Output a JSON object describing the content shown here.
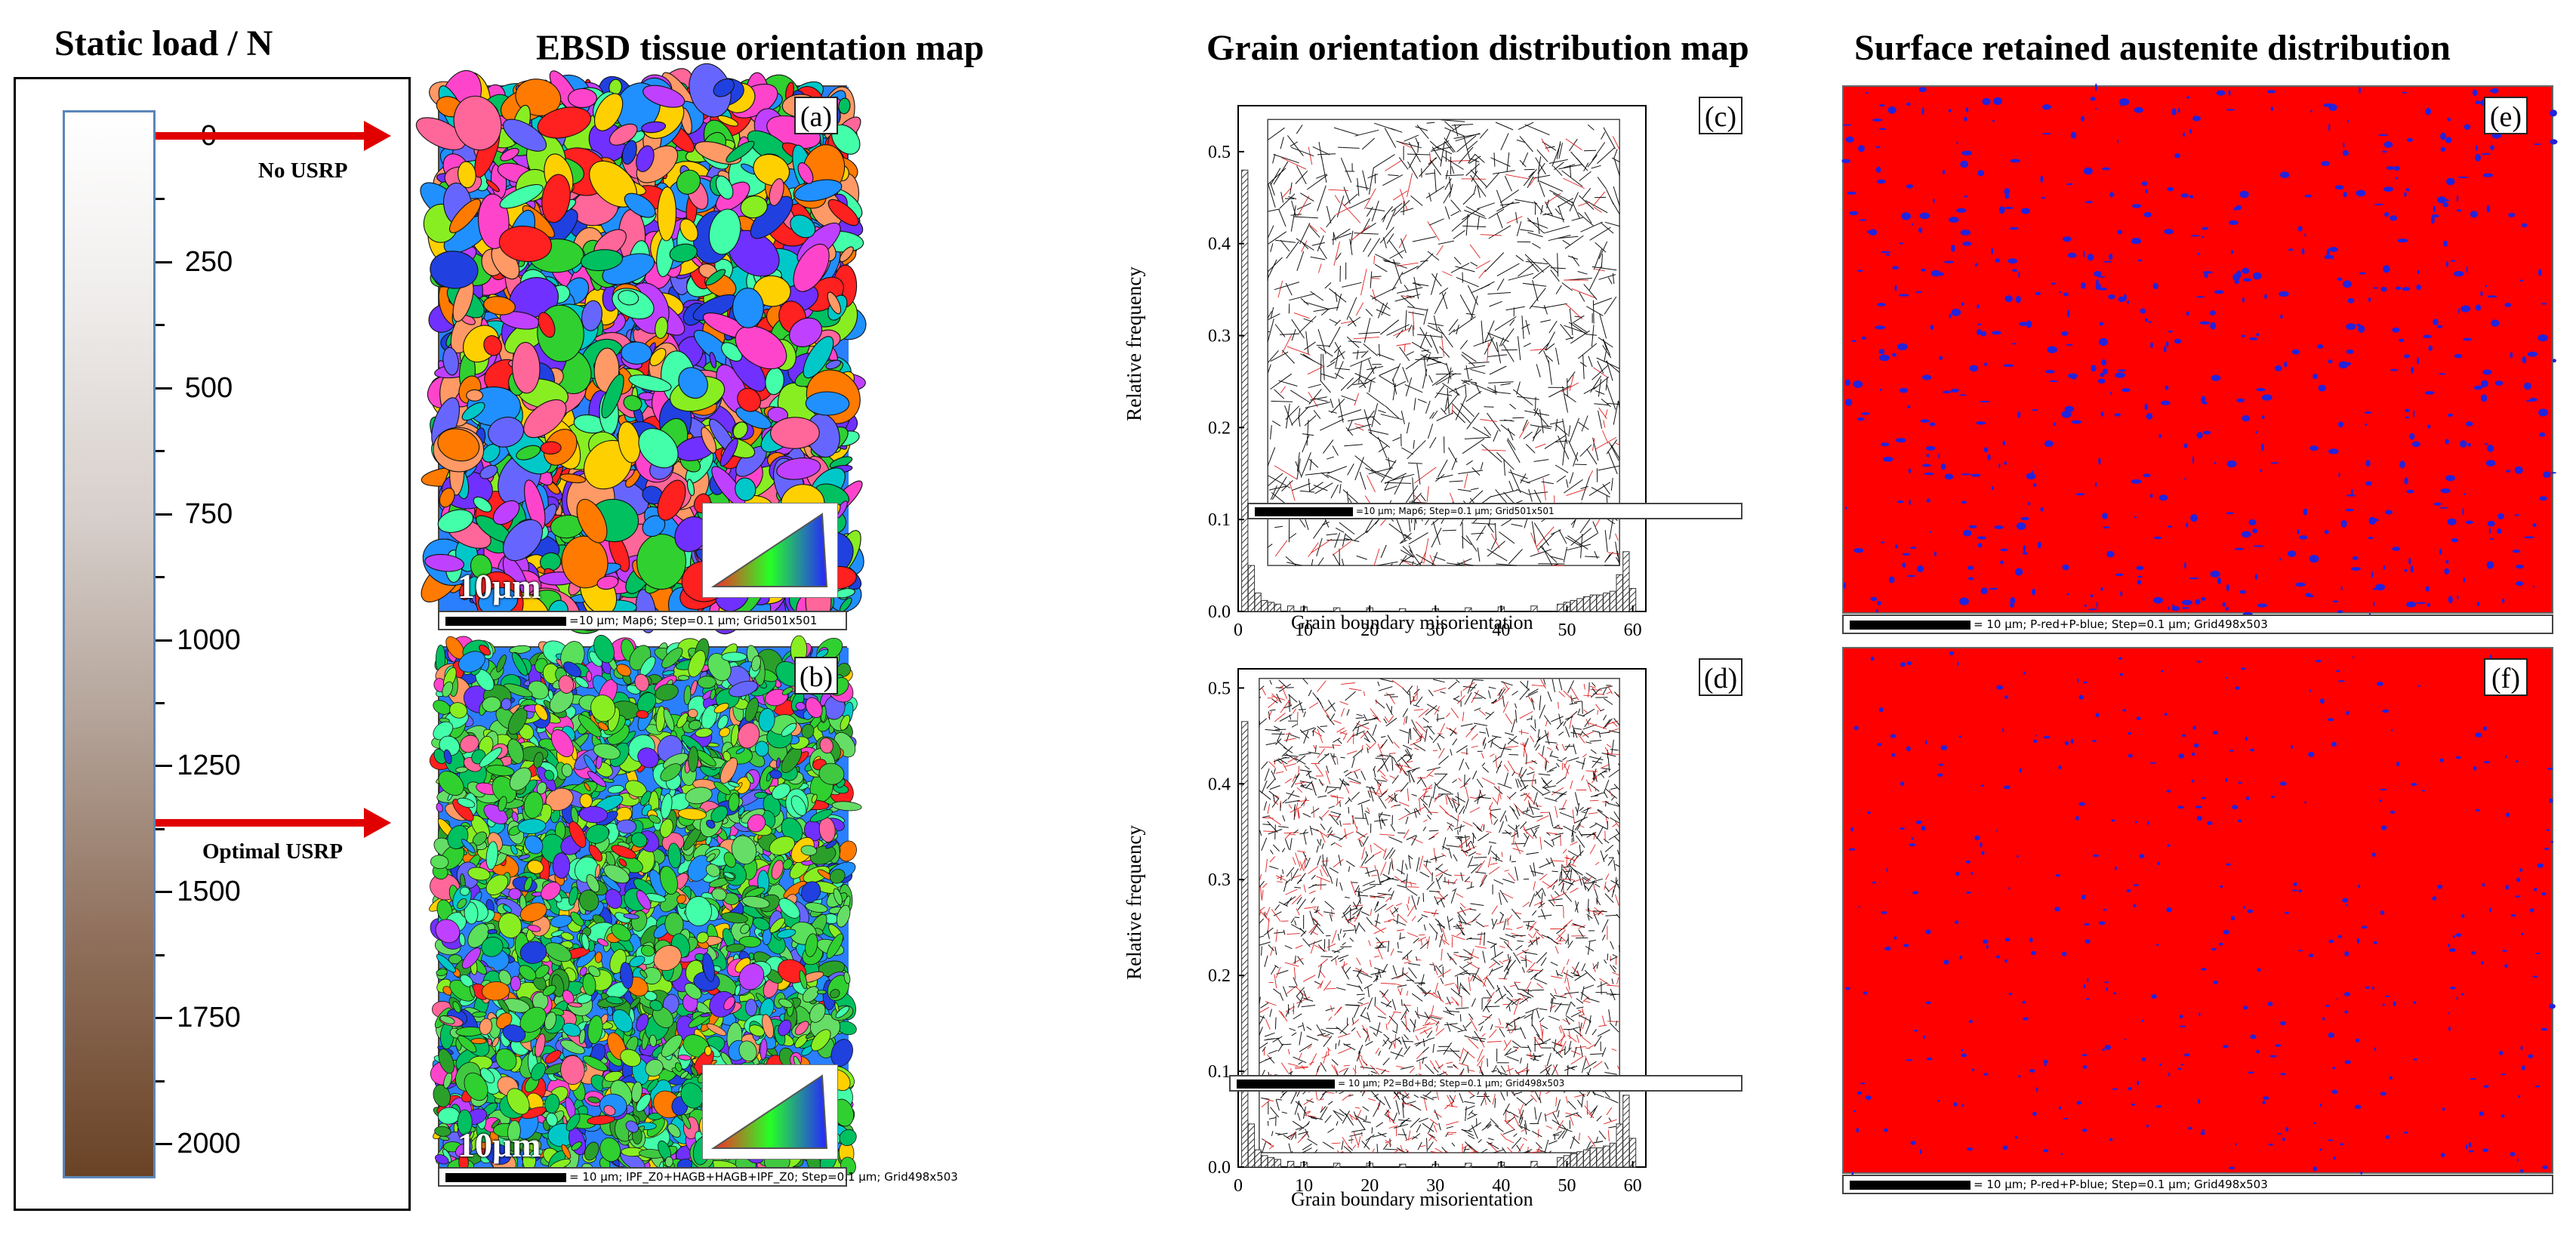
{
  "titles": {
    "static_load": "Static load / N",
    "ebsd": "EBSD tissue orientation map",
    "grain": "Grain orientation distribution map",
    "austenite": "Surface retained austenite distribution"
  },
  "load_scale": {
    "labels": [
      "0",
      "250",
      "500",
      "750",
      "1000",
      "1250",
      "1500",
      "1750",
      "2000"
    ],
    "arrows": [
      {
        "label": "No USRP",
        "load": 0
      },
      {
        "label": "Optimal USRP",
        "load": 1375
      }
    ],
    "colors": {
      "top": "#ffffff",
      "bottom": "#6a4326",
      "arrow": "#e00000"
    }
  },
  "ebsd_panels": [
    {
      "letter": "(a)",
      "scale_text": "10μm",
      "caption": "=10 μm; Map6; Step=0.1 μm; Grid501x501"
    },
    {
      "letter": "(b)",
      "scale_text": "10μm",
      "caption": "= 10 μm; IPF_Z0+HAGB+HAGB+IPF_Z0; Step=0.1 μm; Grid498x503"
    }
  ],
  "grain_panels": [
    {
      "letter": "(c)",
      "ylabel": "Relative frequency",
      "xlabel": "Grain boundary misorientation",
      "caption": "=10 μm; Map6; Step=0.1 μm; Grid501x501"
    },
    {
      "letter": "(d)",
      "ylabel": "Relative frequency",
      "xlabel": "Grain boundary misorientation",
      "caption": "= 10 μm; P2=Bd+Bd; Step=0.1 μm; Grid498x503"
    }
  ],
  "austenite_panels": [
    {
      "letter": "(e)",
      "caption": "= 10 μm; P-red+P-blue; Step=0.1 μm; Grid498x503"
    },
    {
      "letter": "(f)",
      "caption": "= 10 μm; P-red+P-blue; Step=0.1 μm; Grid498x503"
    }
  ],
  "chart_data": [
    {
      "type": "bar",
      "title": "(c)",
      "xlabel": "Grain boundary misorientation",
      "ylabel": "Relative frequency",
      "xlim": [
        0,
        62
      ],
      "ylim": [
        0,
        0.55
      ],
      "xticks": [
        "0",
        "10",
        "20",
        "30",
        "40",
        "50",
        "60"
      ],
      "yticks": [
        "0.0",
        "0.1",
        "0.2",
        "0.3",
        "0.4",
        "0.5"
      ],
      "x": [
        1,
        2,
        3,
        4,
        5,
        6,
        8,
        10,
        15,
        20,
        25,
        30,
        35,
        40,
        45,
        49,
        50,
        51,
        52,
        53,
        54,
        55,
        56,
        57,
        58,
        59,
        60
      ],
      "values": [
        0.48,
        0.05,
        0.02,
        0.012,
        0.01,
        0.008,
        0.006,
        0.005,
        0.004,
        0.004,
        0.003,
        0.003,
        0.004,
        0.005,
        0.006,
        0.008,
        0.01,
        0.012,
        0.014,
        0.016,
        0.018,
        0.018,
        0.02,
        0.022,
        0.04,
        0.065,
        0.025
      ]
    },
    {
      "type": "bar",
      "title": "(d)",
      "xlabel": "Grain boundary misorientation",
      "ylabel": "Relative frequency",
      "xlim": [
        0,
        62
      ],
      "ylim": [
        0,
        0.52
      ],
      "xticks": [
        "0",
        "10",
        "20",
        "30",
        "40",
        "50",
        "60"
      ],
      "yticks": [
        "0.0",
        "0.1",
        "0.2",
        "0.3",
        "0.4",
        "0.5"
      ],
      "x": [
        1,
        2,
        3,
        4,
        5,
        6,
        8,
        10,
        15,
        20,
        25,
        30,
        35,
        40,
        45,
        49,
        50,
        51,
        52,
        53,
        54,
        55,
        56,
        57,
        58,
        59,
        60
      ],
      "values": [
        0.465,
        0.045,
        0.018,
        0.012,
        0.01,
        0.008,
        0.006,
        0.005,
        0.004,
        0.004,
        0.003,
        0.003,
        0.004,
        0.005,
        0.006,
        0.01,
        0.012,
        0.014,
        0.016,
        0.018,
        0.02,
        0.02,
        0.022,
        0.025,
        0.045,
        0.075,
        0.03
      ]
    }
  ]
}
